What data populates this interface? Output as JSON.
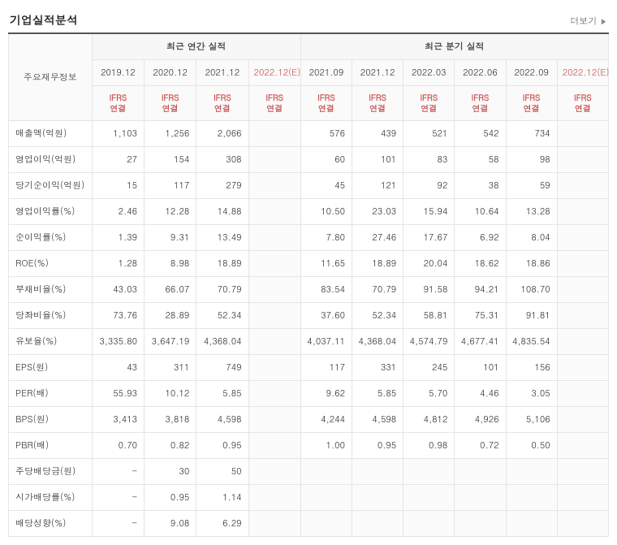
{
  "header": {
    "title": "기업실적분석",
    "more_label": "더보기",
    "more_arrow": "▶"
  },
  "columns": {
    "rowhead": "주요재무정보",
    "annual_group": "최근 연간 실적",
    "quarter_group": "최근 분기 실적",
    "annual": [
      {
        "period": "2019.12",
        "basis": "IFRS\n연결",
        "est": false
      },
      {
        "period": "2020.12",
        "basis": "IFRS\n연결",
        "est": false
      },
      {
        "period": "2021.12",
        "basis": "IFRS\n연결",
        "est": false
      },
      {
        "period": "2022.12(E)",
        "basis": "IFRS\n연결",
        "est": true
      }
    ],
    "quarter": [
      {
        "period": "2021.09",
        "basis": "IFRS\n연결",
        "est": false
      },
      {
        "period": "2021.12",
        "basis": "IFRS\n연결",
        "est": false
      },
      {
        "period": "2022.03",
        "basis": "IFRS\n연결",
        "est": false
      },
      {
        "period": "2022.06",
        "basis": "IFRS\n연결",
        "est": false
      },
      {
        "period": "2022.09",
        "basis": "IFRS\n연결",
        "est": false
      },
      {
        "period": "2022.12(E)",
        "basis": "IFRS\n연결",
        "est": true
      }
    ]
  },
  "rows": [
    {
      "label": "매출액(억원)",
      "a": [
        "1,103",
        "1,256",
        "2,066",
        ""
      ],
      "q": [
        "576",
        "439",
        "521",
        "542",
        "734",
        ""
      ]
    },
    {
      "label": "영업이익(억원)",
      "a": [
        "27",
        "154",
        "308",
        ""
      ],
      "q": [
        "60",
        "101",
        "83",
        "58",
        "98",
        ""
      ]
    },
    {
      "label": "당기순이익(억원)",
      "a": [
        "15",
        "117",
        "279",
        ""
      ],
      "q": [
        "45",
        "121",
        "92",
        "38",
        "59",
        ""
      ]
    },
    {
      "label": "영업이익률(%)",
      "a": [
        "2.46",
        "12.28",
        "14.88",
        ""
      ],
      "q": [
        "10.50",
        "23.03",
        "15.94",
        "10.64",
        "13.28",
        ""
      ]
    },
    {
      "label": "순이익률(%)",
      "a": [
        "1.39",
        "9.31",
        "13.49",
        ""
      ],
      "q": [
        "7.80",
        "27.46",
        "17.67",
        "6.92",
        "8.04",
        ""
      ]
    },
    {
      "label": "ROE(%)",
      "a": [
        "1.28",
        "8.98",
        "18.89",
        ""
      ],
      "q": [
        "11.65",
        "18.89",
        "20.04",
        "18.62",
        "18.86",
        ""
      ]
    },
    {
      "label": "부채비율(%)",
      "a": [
        "43.03",
        "66.07",
        "70.79",
        ""
      ],
      "q": [
        "83.54",
        "70.79",
        "91.58",
        "94.21",
        "108.70",
        ""
      ]
    },
    {
      "label": "당좌비율(%)",
      "a": [
        "73.76",
        "28.89",
        "52.34",
        ""
      ],
      "q": [
        "37.60",
        "52.34",
        "58.81",
        "75.31",
        "91.81",
        ""
      ]
    },
    {
      "label": "유보율(%)",
      "a": [
        "3,335.80",
        "3,647.19",
        "4,368.04",
        ""
      ],
      "q": [
        "4,037.11",
        "4,368.04",
        "4,574.79",
        "4,677.41",
        "4,835.54",
        ""
      ]
    },
    {
      "label": "EPS(원)",
      "a": [
        "43",
        "311",
        "749",
        ""
      ],
      "q": [
        "117",
        "331",
        "245",
        "101",
        "156",
        ""
      ]
    },
    {
      "label": "PER(배)",
      "a": [
        "55.93",
        "10.12",
        "5.85",
        ""
      ],
      "q": [
        "9.62",
        "5.85",
        "5.70",
        "4.46",
        "3.05",
        ""
      ]
    },
    {
      "label": "BPS(원)",
      "a": [
        "3,413",
        "3,818",
        "4,598",
        ""
      ],
      "q": [
        "4,244",
        "4,598",
        "4,812",
        "4,926",
        "5,106",
        ""
      ]
    },
    {
      "label": "PBR(배)",
      "a": [
        "0.70",
        "0.82",
        "0.95",
        ""
      ],
      "q": [
        "1.00",
        "0.95",
        "0.98",
        "0.72",
        "0.50",
        ""
      ]
    },
    {
      "label": "주당배당금(원)",
      "a": [
        "-",
        "30",
        "50",
        ""
      ],
      "q": [
        "",
        "",
        "",
        "",
        "",
        ""
      ],
      "qblank": true
    },
    {
      "label": "시가배당률(%)",
      "a": [
        "-",
        "0.95",
        "1.14",
        ""
      ],
      "q": [
        "",
        "",
        "",
        "",
        "",
        ""
      ],
      "qblank": true
    },
    {
      "label": "배당성향(%)",
      "a": [
        "-",
        "9.08",
        "6.29",
        ""
      ],
      "q": [
        "",
        "",
        "",
        "",
        "",
        ""
      ],
      "qblank": true
    }
  ],
  "style": {
    "header_border_top": "#555555",
    "cell_border": "#e5e5e5",
    "head_bg": "#fafafa",
    "accent_text": "#c85050",
    "blank_bg": "#fbfbfb",
    "font_size_body": 11,
    "font_size_title": 14
  }
}
